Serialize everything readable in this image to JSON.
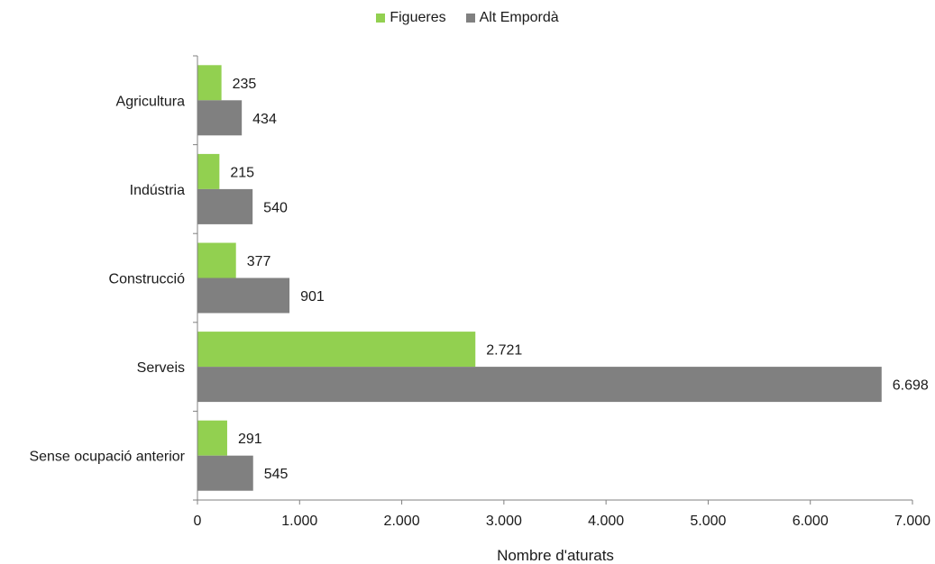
{
  "chart_data": {
    "type": "bar",
    "orientation": "horizontal",
    "categories": [
      "Agricultura",
      "Indústria",
      "Construcció",
      "Serveis",
      "Sense ocupació anterior"
    ],
    "series": [
      {
        "name": "Figueres",
        "color": "#92d050",
        "values": [
          235,
          215,
          377,
          2721,
          291
        ],
        "value_labels": [
          "235",
          "215",
          "377",
          "2.721",
          "291"
        ]
      },
      {
        "name": "Alt Empordà",
        "color": "#808080",
        "values": [
          434,
          540,
          901,
          6698,
          545
        ],
        "value_labels": [
          "434",
          "540",
          "901",
          "6.698",
          "545"
        ]
      }
    ],
    "xlabel": "Nombre d'aturats",
    "xlim": [
      0,
      7000
    ],
    "xticks": [
      0,
      1000,
      2000,
      3000,
      4000,
      5000,
      6000,
      7000
    ],
    "xtick_labels": [
      "0",
      "1.000",
      "2.000",
      "3.000",
      "4.000",
      "5.000",
      "6.000",
      "7.000"
    ],
    "legend_position": "top",
    "grid": false
  }
}
